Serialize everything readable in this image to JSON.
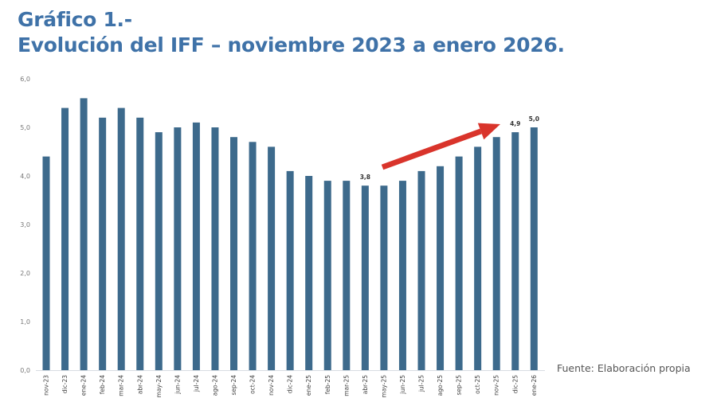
{
  "header": {
    "title_line1": "Gráfico 1.-",
    "title_line2": "Evolución del IFF – noviembre 2023 a enero 2026."
  },
  "source": "Fuente: Elaboración propia",
  "colors": {
    "bar": "#3d6a8c",
    "title": "#3f72a8",
    "arrow": "#d9342b"
  },
  "chart_data": {
    "type": "bar",
    "title": "",
    "xlabel": "",
    "ylabel": "",
    "ylim": [
      0,
      6
    ],
    "yticks": [
      "0,0",
      "1,0",
      "2,0",
      "3,0",
      "4,0",
      "5,0",
      "6,0"
    ],
    "grid": false,
    "categories": [
      "nov-23",
      "dic-23",
      "ene-24",
      "feb-24",
      "mar-24",
      "abr-24",
      "may-24",
      "jun-24",
      "jul-24",
      "ago-24",
      "sep-24",
      "oct-24",
      "nov-24",
      "dic-24",
      "ene-25",
      "feb-25",
      "mar-25",
      "abr-25",
      "may-25",
      "jun-25",
      "jul-25",
      "ago-25",
      "sep-25",
      "oct-25",
      "nov-25",
      "dic-25",
      "ene-26"
    ],
    "values": [
      4.4,
      5.4,
      5.6,
      5.2,
      5.4,
      5.2,
      4.9,
      5.0,
      5.1,
      5.0,
      4.8,
      4.7,
      4.6,
      4.1,
      4.0,
      3.9,
      3.9,
      3.8,
      3.8,
      3.9,
      4.1,
      4.2,
      4.4,
      4.6,
      4.8,
      4.9,
      5.0
    ],
    "data_labels": [
      {
        "category": "abr-25",
        "text": "3,8"
      },
      {
        "category": "dic-25",
        "text": "4,9"
      },
      {
        "category": "ene-26",
        "text": "5,0"
      }
    ],
    "annotations": [
      {
        "type": "arrow",
        "from": "may-25",
        "to": "dic-25",
        "color": "#d9342b"
      }
    ]
  }
}
